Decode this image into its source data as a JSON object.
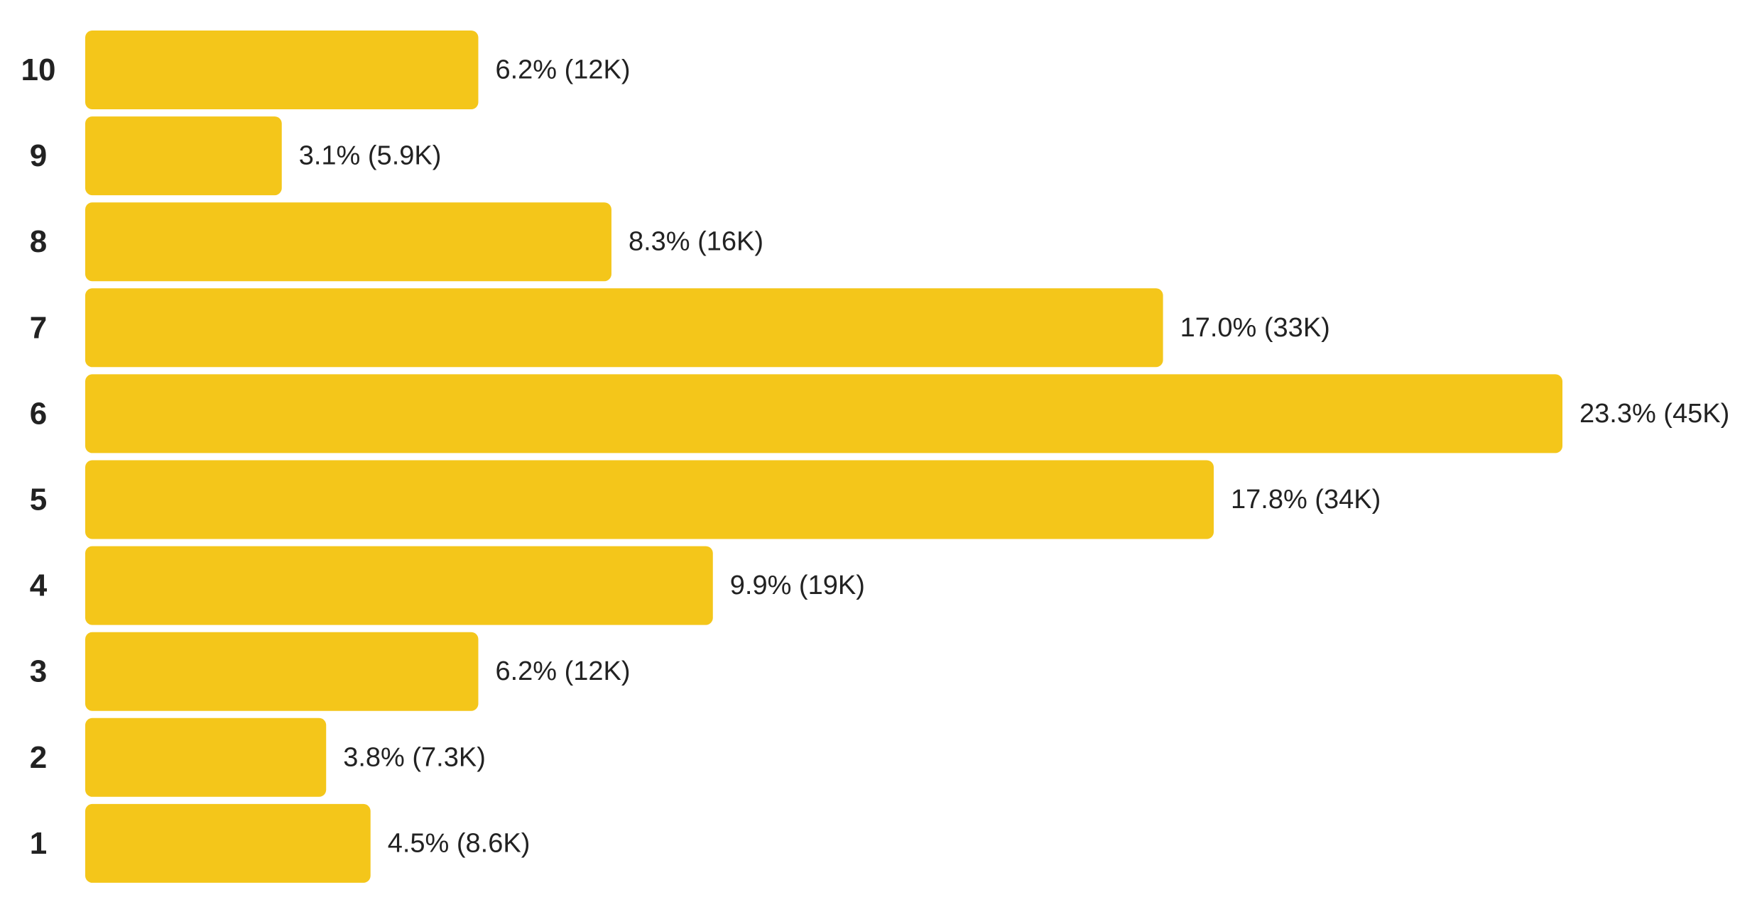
{
  "chart_data": {
    "type": "bar",
    "orientation": "horizontal",
    "categories": [
      "10",
      "9",
      "8",
      "7",
      "6",
      "5",
      "4",
      "3",
      "2",
      "1"
    ],
    "series": [
      {
        "values": [
          6.2,
          3.1,
          8.3,
          17.0,
          23.3,
          17.8,
          9.9,
          6.2,
          3.8,
          4.5
        ],
        "counts": [
          "12K",
          "5.9K",
          "16K",
          "33K",
          "45K",
          "34K",
          "19K",
          "12K",
          "7.3K",
          "8.6K"
        ]
      }
    ],
    "data_labels": [
      "6.2% (12K)",
      "3.1% (5.9K)",
      "8.3% (16K)",
      "17.0% (33K)",
      "23.3% (45K)",
      "17.8% (34K)",
      "9.9% (19K)",
      "6.2% (12K)",
      "3.8% (7.3K)",
      "4.5% (8.6K)"
    ],
    "value_unit": "%",
    "xlim": [
      0,
      23.3
    ],
    "title": "",
    "xlabel": "",
    "ylabel": "",
    "grid": false,
    "legend": "none",
    "bar_color": "#F4C61A",
    "text_color": "#222222"
  }
}
